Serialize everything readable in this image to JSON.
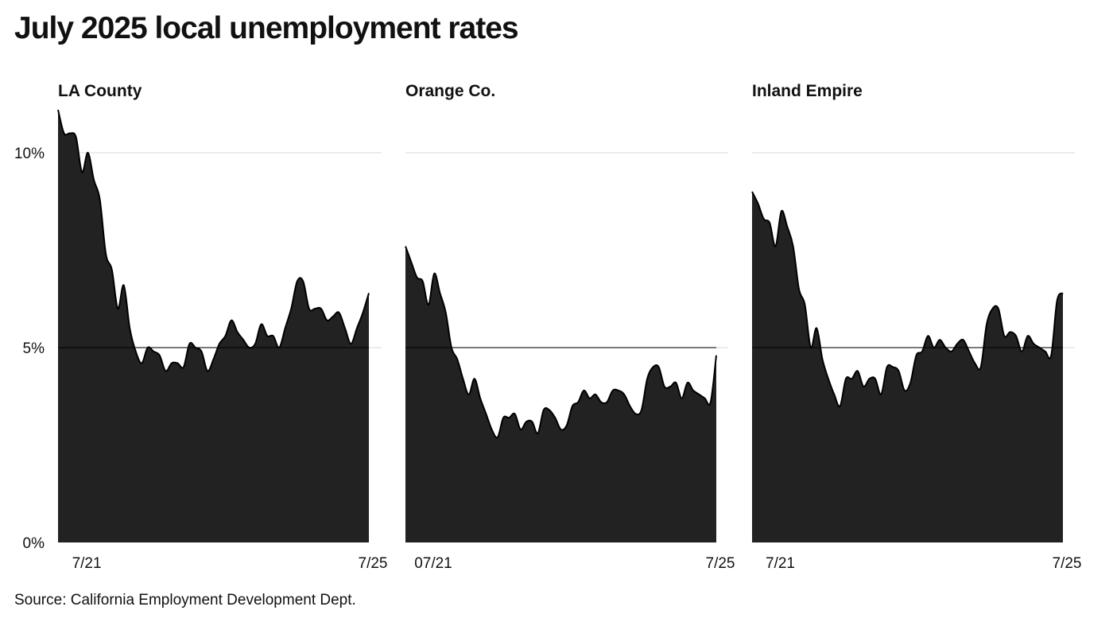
{
  "title": "July 2025 local unemployment rates",
  "source": "Source: California Employment Development Dept.",
  "colors": {
    "area": "#222222",
    "grid": "#e6e6e6",
    "text": "#111111"
  },
  "chart_data": [
    {
      "type": "area",
      "title": "LA County",
      "ylim": [
        0,
        11
      ],
      "ytick_values": [
        0,
        5,
        10
      ],
      "ytick_labels": [
        "0%",
        "5%",
        "10%"
      ],
      "xtick_labels": [
        "7/21",
        "7/25"
      ],
      "grid": true,
      "y": [
        11.1,
        10.5,
        10.5,
        10.4,
        9.5,
        10.0,
        9.3,
        8.8,
        7.4,
        7.0,
        6.0,
        6.6,
        5.5,
        4.9,
        4.6,
        5.0,
        4.9,
        4.8,
        4.4,
        4.6,
        4.6,
        4.5,
        5.1,
        5.0,
        4.9,
        4.4,
        4.7,
        5.1,
        5.3,
        5.7,
        5.4,
        5.2,
        5.0,
        5.1,
        5.6,
        5.3,
        5.3,
        5.0,
        5.5,
        6.0,
        6.7,
        6.7,
        6.0,
        6.0,
        6.0,
        5.7,
        5.8,
        5.9,
        5.5,
        5.1,
        5.5,
        5.9,
        6.4
      ]
    },
    {
      "type": "area",
      "title": "Orange Co.",
      "ylim": [
        0,
        11
      ],
      "ytick_values": [
        0,
        5,
        10
      ],
      "ytick_labels": [
        "",
        "",
        ""
      ],
      "xtick_labels": [
        "07/21",
        "7/25"
      ],
      "grid": true,
      "y": [
        7.6,
        7.2,
        6.8,
        6.7,
        6.1,
        6.9,
        6.4,
        5.9,
        5.0,
        4.7,
        4.2,
        3.8,
        4.2,
        3.7,
        3.3,
        2.9,
        2.7,
        3.2,
        3.2,
        3.3,
        2.9,
        3.1,
        3.1,
        2.8,
        3.4,
        3.4,
        3.2,
        2.9,
        3.0,
        3.5,
        3.6,
        3.9,
        3.7,
        3.8,
        3.6,
        3.6,
        3.9,
        3.9,
        3.8,
        3.5,
        3.3,
        3.4,
        4.2,
        4.5,
        4.5,
        4.0,
        4.0,
        4.1,
        3.7,
        4.1,
        3.9,
        3.8,
        3.7,
        3.6,
        4.8
      ]
    },
    {
      "type": "area",
      "title": "Inland Empire",
      "ylim": [
        0,
        11
      ],
      "ytick_values": [
        0,
        5,
        10
      ],
      "ytick_labels": [
        "",
        "",
        ""
      ],
      "xtick_labels": [
        "7/21",
        "7/25"
      ],
      "grid": true,
      "y": [
        9.0,
        8.7,
        8.3,
        8.2,
        7.6,
        8.5,
        8.1,
        7.6,
        6.5,
        6.1,
        5.0,
        5.5,
        4.7,
        4.2,
        3.8,
        3.5,
        4.2,
        4.2,
        4.4,
        4.0,
        4.2,
        4.2,
        3.8,
        4.5,
        4.5,
        4.4,
        3.9,
        4.1,
        4.8,
        4.9,
        5.3,
        5.0,
        5.2,
        5.0,
        4.9,
        5.1,
        5.2,
        4.9,
        4.6,
        4.5,
        5.6,
        6.0,
        6.0,
        5.3,
        5.4,
        5.3,
        4.9,
        5.3,
        5.1,
        5.0,
        4.9,
        4.8,
        6.2,
        6.4
      ]
    }
  ]
}
